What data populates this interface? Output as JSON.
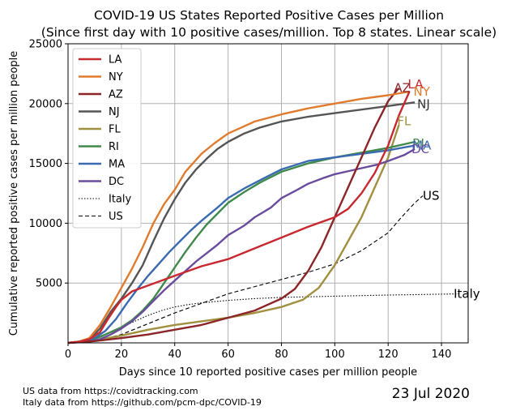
{
  "chart_data": {
    "type": "line",
    "title": "COVID-19 US States Reported Positive Cases per Million",
    "subtitle": "(Since first day with 10 positive cases/million. Top 8 states. Linear scale)",
    "xlabel": "Days since 10 reported positive cases per million people",
    "ylabel": "Cumulative reported positive cases per million people",
    "xlim": [
      0,
      150
    ],
    "ylim": [
      0,
      25000
    ],
    "xticks": [
      0,
      20,
      40,
      60,
      80,
      100,
      120,
      140
    ],
    "yticks": [
      5000,
      10000,
      15000,
      20000,
      25000
    ],
    "grid": true,
    "legend_position": "top-left",
    "series": [
      {
        "name": "LA",
        "color": "#c8282f",
        "style": "solid",
        "end_label": "LA",
        "label_color": "#c8282f",
        "points": [
          [
            0,
            0
          ],
          [
            4,
            80
          ],
          [
            8,
            300
          ],
          [
            12,
            900
          ],
          [
            15,
            2000
          ],
          [
            18,
            3000
          ],
          [
            20,
            3600
          ],
          [
            24,
            4300
          ],
          [
            30,
            4800
          ],
          [
            40,
            5600
          ],
          [
            50,
            6400
          ],
          [
            60,
            7000
          ],
          [
            70,
            7900
          ],
          [
            80,
            8800
          ],
          [
            90,
            9700
          ],
          [
            100,
            10500
          ],
          [
            105,
            11200
          ],
          [
            110,
            12500
          ],
          [
            115,
            14200
          ],
          [
            120,
            16500
          ],
          [
            124,
            19000
          ],
          [
            128,
            21000
          ]
        ]
      },
      {
        "name": "NY",
        "color": "#e07b2e",
        "style": "solid",
        "end_label": "NY",
        "label_color": "#e07b2e",
        "points": [
          [
            0,
            0
          ],
          [
            4,
            100
          ],
          [
            8,
            400
          ],
          [
            12,
            1500
          ],
          [
            16,
            3000
          ],
          [
            20,
            4600
          ],
          [
            24,
            6200
          ],
          [
            28,
            8000
          ],
          [
            32,
            10000
          ],
          [
            36,
            11600
          ],
          [
            40,
            12800
          ],
          [
            44,
            14300
          ],
          [
            50,
            15800
          ],
          [
            55,
            16700
          ],
          [
            60,
            17500
          ],
          [
            65,
            18000
          ],
          [
            70,
            18500
          ],
          [
            80,
            19100
          ],
          [
            90,
            19600
          ],
          [
            100,
            20000
          ],
          [
            110,
            20400
          ],
          [
            120,
            20700
          ],
          [
            128,
            21000
          ]
        ]
      },
      {
        "name": "AZ",
        "color": "#8b2528",
        "style": "solid",
        "end_label": "AZ",
        "label_color": "#8b2528",
        "points": [
          [
            0,
            0
          ],
          [
            10,
            150
          ],
          [
            20,
            400
          ],
          [
            30,
            700
          ],
          [
            40,
            1100
          ],
          [
            50,
            1500
          ],
          [
            60,
            2100
          ],
          [
            70,
            2700
          ],
          [
            80,
            3700
          ],
          [
            85,
            4500
          ],
          [
            90,
            6000
          ],
          [
            95,
            8000
          ],
          [
            100,
            10500
          ],
          [
            105,
            13000
          ],
          [
            110,
            15500
          ],
          [
            115,
            18000
          ],
          [
            120,
            20200
          ],
          [
            124,
            21300
          ]
        ]
      },
      {
        "name": "NJ",
        "color": "#555555",
        "style": "solid",
        "end_label": "NJ",
        "label_color": "#333333",
        "points": [
          [
            0,
            0
          ],
          [
            4,
            100
          ],
          [
            8,
            300
          ],
          [
            12,
            1200
          ],
          [
            16,
            2600
          ],
          [
            20,
            3700
          ],
          [
            24,
            5000
          ],
          [
            28,
            6500
          ],
          [
            32,
            8500
          ],
          [
            36,
            10400
          ],
          [
            40,
            12000
          ],
          [
            44,
            13400
          ],
          [
            48,
            14500
          ],
          [
            52,
            15400
          ],
          [
            56,
            16200
          ],
          [
            60,
            16800
          ],
          [
            66,
            17500
          ],
          [
            72,
            18000
          ],
          [
            80,
            18500
          ],
          [
            90,
            18900
          ],
          [
            100,
            19200
          ],
          [
            110,
            19500
          ],
          [
            120,
            19800
          ],
          [
            130,
            20100
          ]
        ]
      },
      {
        "name": "FL",
        "color": "#a09040",
        "style": "solid",
        "end_label": "FL",
        "label_color": "#a09040",
        "points": [
          [
            0,
            0
          ],
          [
            10,
            200
          ],
          [
            20,
            600
          ],
          [
            30,
            1100
          ],
          [
            40,
            1500
          ],
          [
            50,
            1800
          ],
          [
            60,
            2100
          ],
          [
            70,
            2500
          ],
          [
            80,
            3000
          ],
          [
            88,
            3600
          ],
          [
            94,
            4600
          ],
          [
            100,
            6500
          ],
          [
            105,
            8500
          ],
          [
            110,
            10500
          ],
          [
            115,
            13000
          ],
          [
            120,
            15500
          ],
          [
            124,
            18200
          ]
        ]
      },
      {
        "name": "RI",
        "color": "#3f8a4a",
        "style": "solid",
        "end_label": "RI",
        "label_color": "#3f8a4a",
        "points": [
          [
            0,
            0
          ],
          [
            8,
            200
          ],
          [
            12,
            500
          ],
          [
            16,
            900
          ],
          [
            20,
            1300
          ],
          [
            24,
            1900
          ],
          [
            28,
            2700
          ],
          [
            32,
            3700
          ],
          [
            36,
            5000
          ],
          [
            40,
            6300
          ],
          [
            44,
            7600
          ],
          [
            48,
            8800
          ],
          [
            52,
            9900
          ],
          [
            56,
            10800
          ],
          [
            60,
            11700
          ],
          [
            66,
            12600
          ],
          [
            72,
            13400
          ],
          [
            80,
            14300
          ],
          [
            90,
            15000
          ],
          [
            100,
            15500
          ],
          [
            110,
            15900
          ],
          [
            120,
            16300
          ],
          [
            130,
            16800
          ]
        ]
      },
      {
        "name": "MA",
        "color": "#3a6ab0",
        "style": "solid",
        "end_label": "MA",
        "label_color": "#3a6ab0",
        "points": [
          [
            0,
            0
          ],
          [
            6,
            120
          ],
          [
            10,
            400
          ],
          [
            14,
            1000
          ],
          [
            18,
            2000
          ],
          [
            22,
            3300
          ],
          [
            26,
            4500
          ],
          [
            30,
            5600
          ],
          [
            34,
            6600
          ],
          [
            38,
            7600
          ],
          [
            42,
            8500
          ],
          [
            46,
            9400
          ],
          [
            50,
            10200
          ],
          [
            56,
            11300
          ],
          [
            60,
            12100
          ],
          [
            66,
            12900
          ],
          [
            72,
            13600
          ],
          [
            80,
            14500
          ],
          [
            90,
            15200
          ],
          [
            100,
            15500
          ],
          [
            110,
            15800
          ],
          [
            120,
            16100
          ],
          [
            130,
            16500
          ]
        ]
      },
      {
        "name": "DC",
        "color": "#6a4c9c",
        "style": "solid",
        "end_label": "DC",
        "label_color": "#6a4c9c",
        "points": [
          [
            0,
            0
          ],
          [
            8,
            100
          ],
          [
            12,
            300
          ],
          [
            16,
            700
          ],
          [
            20,
            1200
          ],
          [
            24,
            1800
          ],
          [
            28,
            2600
          ],
          [
            32,
            3500
          ],
          [
            36,
            4400
          ],
          [
            40,
            5200
          ],
          [
            44,
            6000
          ],
          [
            48,
            6800
          ],
          [
            52,
            7500
          ],
          [
            56,
            8200
          ],
          [
            60,
            9000
          ],
          [
            66,
            9800
          ],
          [
            70,
            10500
          ],
          [
            76,
            11300
          ],
          [
            80,
            12100
          ],
          [
            86,
            12800
          ],
          [
            90,
            13300
          ],
          [
            96,
            13800
          ],
          [
            100,
            14100
          ],
          [
            106,
            14400
          ],
          [
            110,
            14600
          ],
          [
            116,
            14900
          ],
          [
            120,
            15200
          ],
          [
            126,
            15700
          ],
          [
            130,
            16200
          ]
        ]
      },
      {
        "name": "Italy",
        "color": "#000000",
        "style": "dotted",
        "end_label": "Italy",
        "label_color": "#000000",
        "points": [
          [
            0,
            0
          ],
          [
            5,
            150
          ],
          [
            10,
            400
          ],
          [
            15,
            800
          ],
          [
            20,
            1300
          ],
          [
            25,
            1800
          ],
          [
            30,
            2300
          ],
          [
            35,
            2700
          ],
          [
            40,
            3000
          ],
          [
            45,
            3200
          ],
          [
            50,
            3350
          ],
          [
            60,
            3550
          ],
          [
            70,
            3700
          ],
          [
            80,
            3800
          ],
          [
            90,
            3850
          ],
          [
            100,
            3900
          ],
          [
            110,
            3950
          ],
          [
            120,
            4000
          ],
          [
            130,
            4030
          ],
          [
            140,
            4070
          ],
          [
            147,
            4100
          ]
        ]
      },
      {
        "name": "US",
        "color": "#000000",
        "style": "dashed",
        "end_label": "US",
        "label_color": "#000000",
        "points": [
          [
            0,
            0
          ],
          [
            10,
            150
          ],
          [
            20,
            700
          ],
          [
            30,
            1600
          ],
          [
            40,
            2500
          ],
          [
            50,
            3300
          ],
          [
            60,
            4100
          ],
          [
            70,
            4700
          ],
          [
            80,
            5300
          ],
          [
            90,
            5900
          ],
          [
            100,
            6600
          ],
          [
            110,
            7700
          ],
          [
            120,
            9200
          ],
          [
            125,
            10500
          ],
          [
            130,
            11700
          ],
          [
            133,
            12300
          ]
        ]
      }
    ]
  },
  "footer": {
    "source_us": "US data from https://covidtracking.com",
    "source_italy": "Italy data from https://github.com/pcm-dpc/COVID-19",
    "date": "23 Jul 2020"
  }
}
